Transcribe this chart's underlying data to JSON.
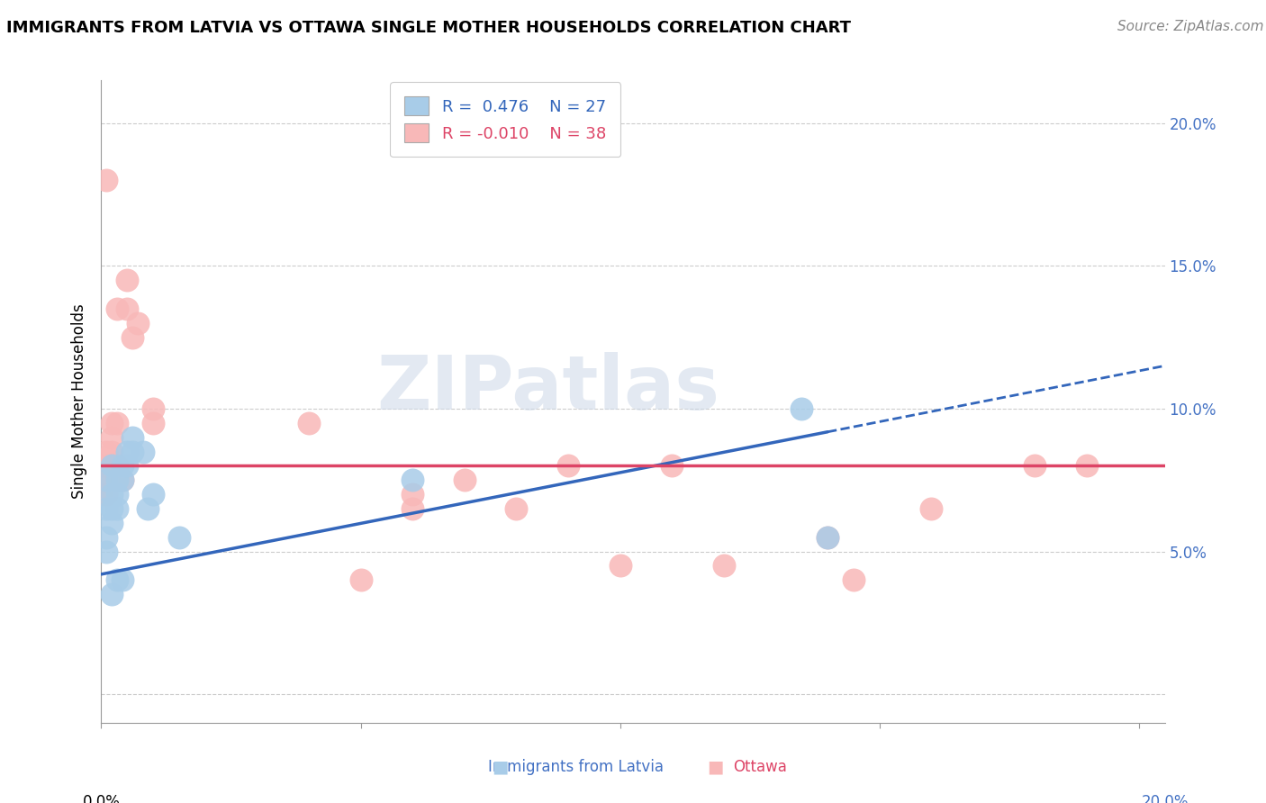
{
  "title": "IMMIGRANTS FROM LATVIA VS OTTAWA SINGLE MOTHER HOUSEHOLDS CORRELATION CHART",
  "source": "Source: ZipAtlas.com",
  "ylabel": "Single Mother Households",
  "xlim": [
    0.0,
    0.205
  ],
  "ylim": [
    -0.01,
    0.215
  ],
  "yticks": [
    0.0,
    0.05,
    0.1,
    0.15,
    0.2
  ],
  "ytick_labels": [
    "",
    "5.0%",
    "10.0%",
    "15.0%",
    "20.0%"
  ],
  "xticks": [
    0.0,
    0.05,
    0.1,
    0.15,
    0.2
  ],
  "legend_blue_r": "0.476",
  "legend_blue_n": "27",
  "legend_pink_r": "-0.010",
  "legend_pink_n": "38",
  "blue_scatter_color": "#a8cce8",
  "pink_scatter_color": "#f8b8b8",
  "blue_line_color": "#3366bb",
  "pink_line_color": "#dd4466",
  "watermark": "ZIPatlas",
  "watermark_color": "#ccd8e8",
  "grid_color": "#cccccc",
  "background_color": "#ffffff",
  "title_fontsize": 13,
  "axis_label_fontsize": 12,
  "tick_label_fontsize": 12,
  "legend_fontsize": 13,
  "source_fontsize": 11,
  "blue_points": [
    [
      0.001,
      0.075
    ],
    [
      0.001,
      0.065
    ],
    [
      0.001,
      0.055
    ],
    [
      0.001,
      0.05
    ],
    [
      0.002,
      0.08
    ],
    [
      0.002,
      0.07
    ],
    [
      0.002,
      0.065
    ],
    [
      0.002,
      0.06
    ],
    [
      0.003,
      0.075
    ],
    [
      0.003,
      0.07
    ],
    [
      0.003,
      0.065
    ],
    [
      0.004,
      0.08
    ],
    [
      0.004,
      0.075
    ],
    [
      0.005,
      0.085
    ],
    [
      0.005,
      0.08
    ],
    [
      0.006,
      0.09
    ],
    [
      0.006,
      0.085
    ],
    [
      0.008,
      0.085
    ],
    [
      0.009,
      0.065
    ],
    [
      0.002,
      0.035
    ],
    [
      0.003,
      0.04
    ],
    [
      0.004,
      0.04
    ],
    [
      0.01,
      0.07
    ],
    [
      0.015,
      0.055
    ],
    [
      0.06,
      0.075
    ],
    [
      0.135,
      0.1
    ],
    [
      0.14,
      0.055
    ]
  ],
  "pink_points": [
    [
      0.0,
      0.08
    ],
    [
      0.0,
      0.075
    ],
    [
      0.0,
      0.07
    ],
    [
      0.001,
      0.085
    ],
    [
      0.001,
      0.08
    ],
    [
      0.001,
      0.075
    ],
    [
      0.001,
      0.07
    ],
    [
      0.002,
      0.09
    ],
    [
      0.002,
      0.085
    ],
    [
      0.002,
      0.08
    ],
    [
      0.003,
      0.08
    ],
    [
      0.003,
      0.075
    ],
    [
      0.004,
      0.075
    ],
    [
      0.005,
      0.145
    ],
    [
      0.005,
      0.135
    ],
    [
      0.006,
      0.125
    ],
    [
      0.007,
      0.13
    ],
    [
      0.01,
      0.1
    ],
    [
      0.01,
      0.095
    ],
    [
      0.04,
      0.095
    ],
    [
      0.05,
      0.04
    ],
    [
      0.06,
      0.07
    ],
    [
      0.06,
      0.065
    ],
    [
      0.07,
      0.075
    ],
    [
      0.08,
      0.065
    ],
    [
      0.09,
      0.08
    ],
    [
      0.1,
      0.045
    ],
    [
      0.11,
      0.08
    ],
    [
      0.12,
      0.045
    ],
    [
      0.14,
      0.055
    ],
    [
      0.145,
      0.04
    ],
    [
      0.16,
      0.065
    ],
    [
      0.001,
      0.18
    ],
    [
      0.002,
      0.095
    ],
    [
      0.003,
      0.135
    ],
    [
      0.003,
      0.095
    ],
    [
      0.18,
      0.08
    ],
    [
      0.19,
      0.08
    ]
  ],
  "blue_line_start_x": 0.0,
  "blue_line_end_solid": 0.14,
  "blue_line_end_dash": 0.205,
  "blue_line_start_y": 0.042,
  "blue_line_end_y": 0.115,
  "pink_line_start_x": 0.0,
  "pink_line_end_x": 0.205,
  "pink_line_start_y": 0.08,
  "pink_line_end_y": 0.08
}
